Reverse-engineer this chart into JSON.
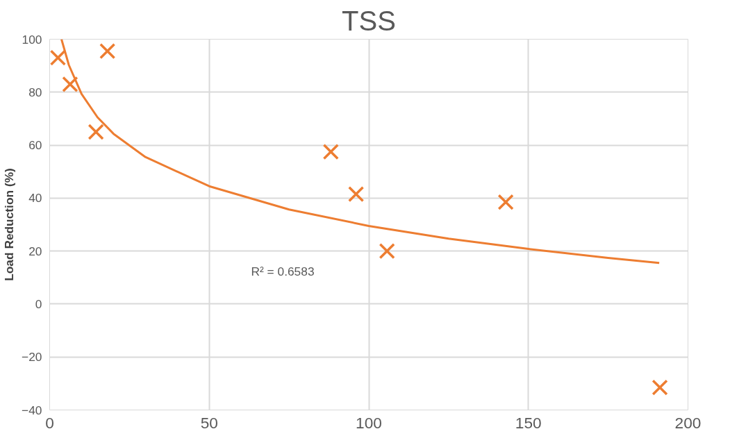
{
  "chart_data": {
    "type": "scatter",
    "title": "TSS",
    "ylabel": "Load Reduction (%)",
    "x": [
      2.6,
      6.4,
      18.1,
      14.5,
      88.1,
      96,
      105.7,
      142.9,
      191.2
    ],
    "series": [
      {
        "marker": "cross",
        "color": "#ed7d31",
        "values": [
          93,
          83,
          95.5,
          65,
          57.5,
          41.5,
          20,
          38.5,
          -31.5
        ]
      },
      {
        "type": "line",
        "color": "#ed7d31",
        "x": [
          3.7,
          6,
          10,
          15,
          20,
          30,
          50,
          75,
          100,
          125,
          150,
          175,
          191
        ],
        "values": [
          100,
          90.3,
          79.3,
          70.5,
          64.3,
          55.5,
          44.5,
          35.7,
          29.5,
          24.7,
          20.8,
          17.4,
          15.5
        ]
      }
    ],
    "xlim": [
      0,
      200
    ],
    "ylim": [
      -40,
      100
    ],
    "xticks": [
      0,
      50,
      100,
      150,
      200
    ],
    "yticks": [
      -40,
      -20,
      0,
      20,
      40,
      60,
      80,
      100
    ],
    "annotations": [
      "R² = 0.6583"
    ],
    "grid": true,
    "line_style": "solid"
  }
}
